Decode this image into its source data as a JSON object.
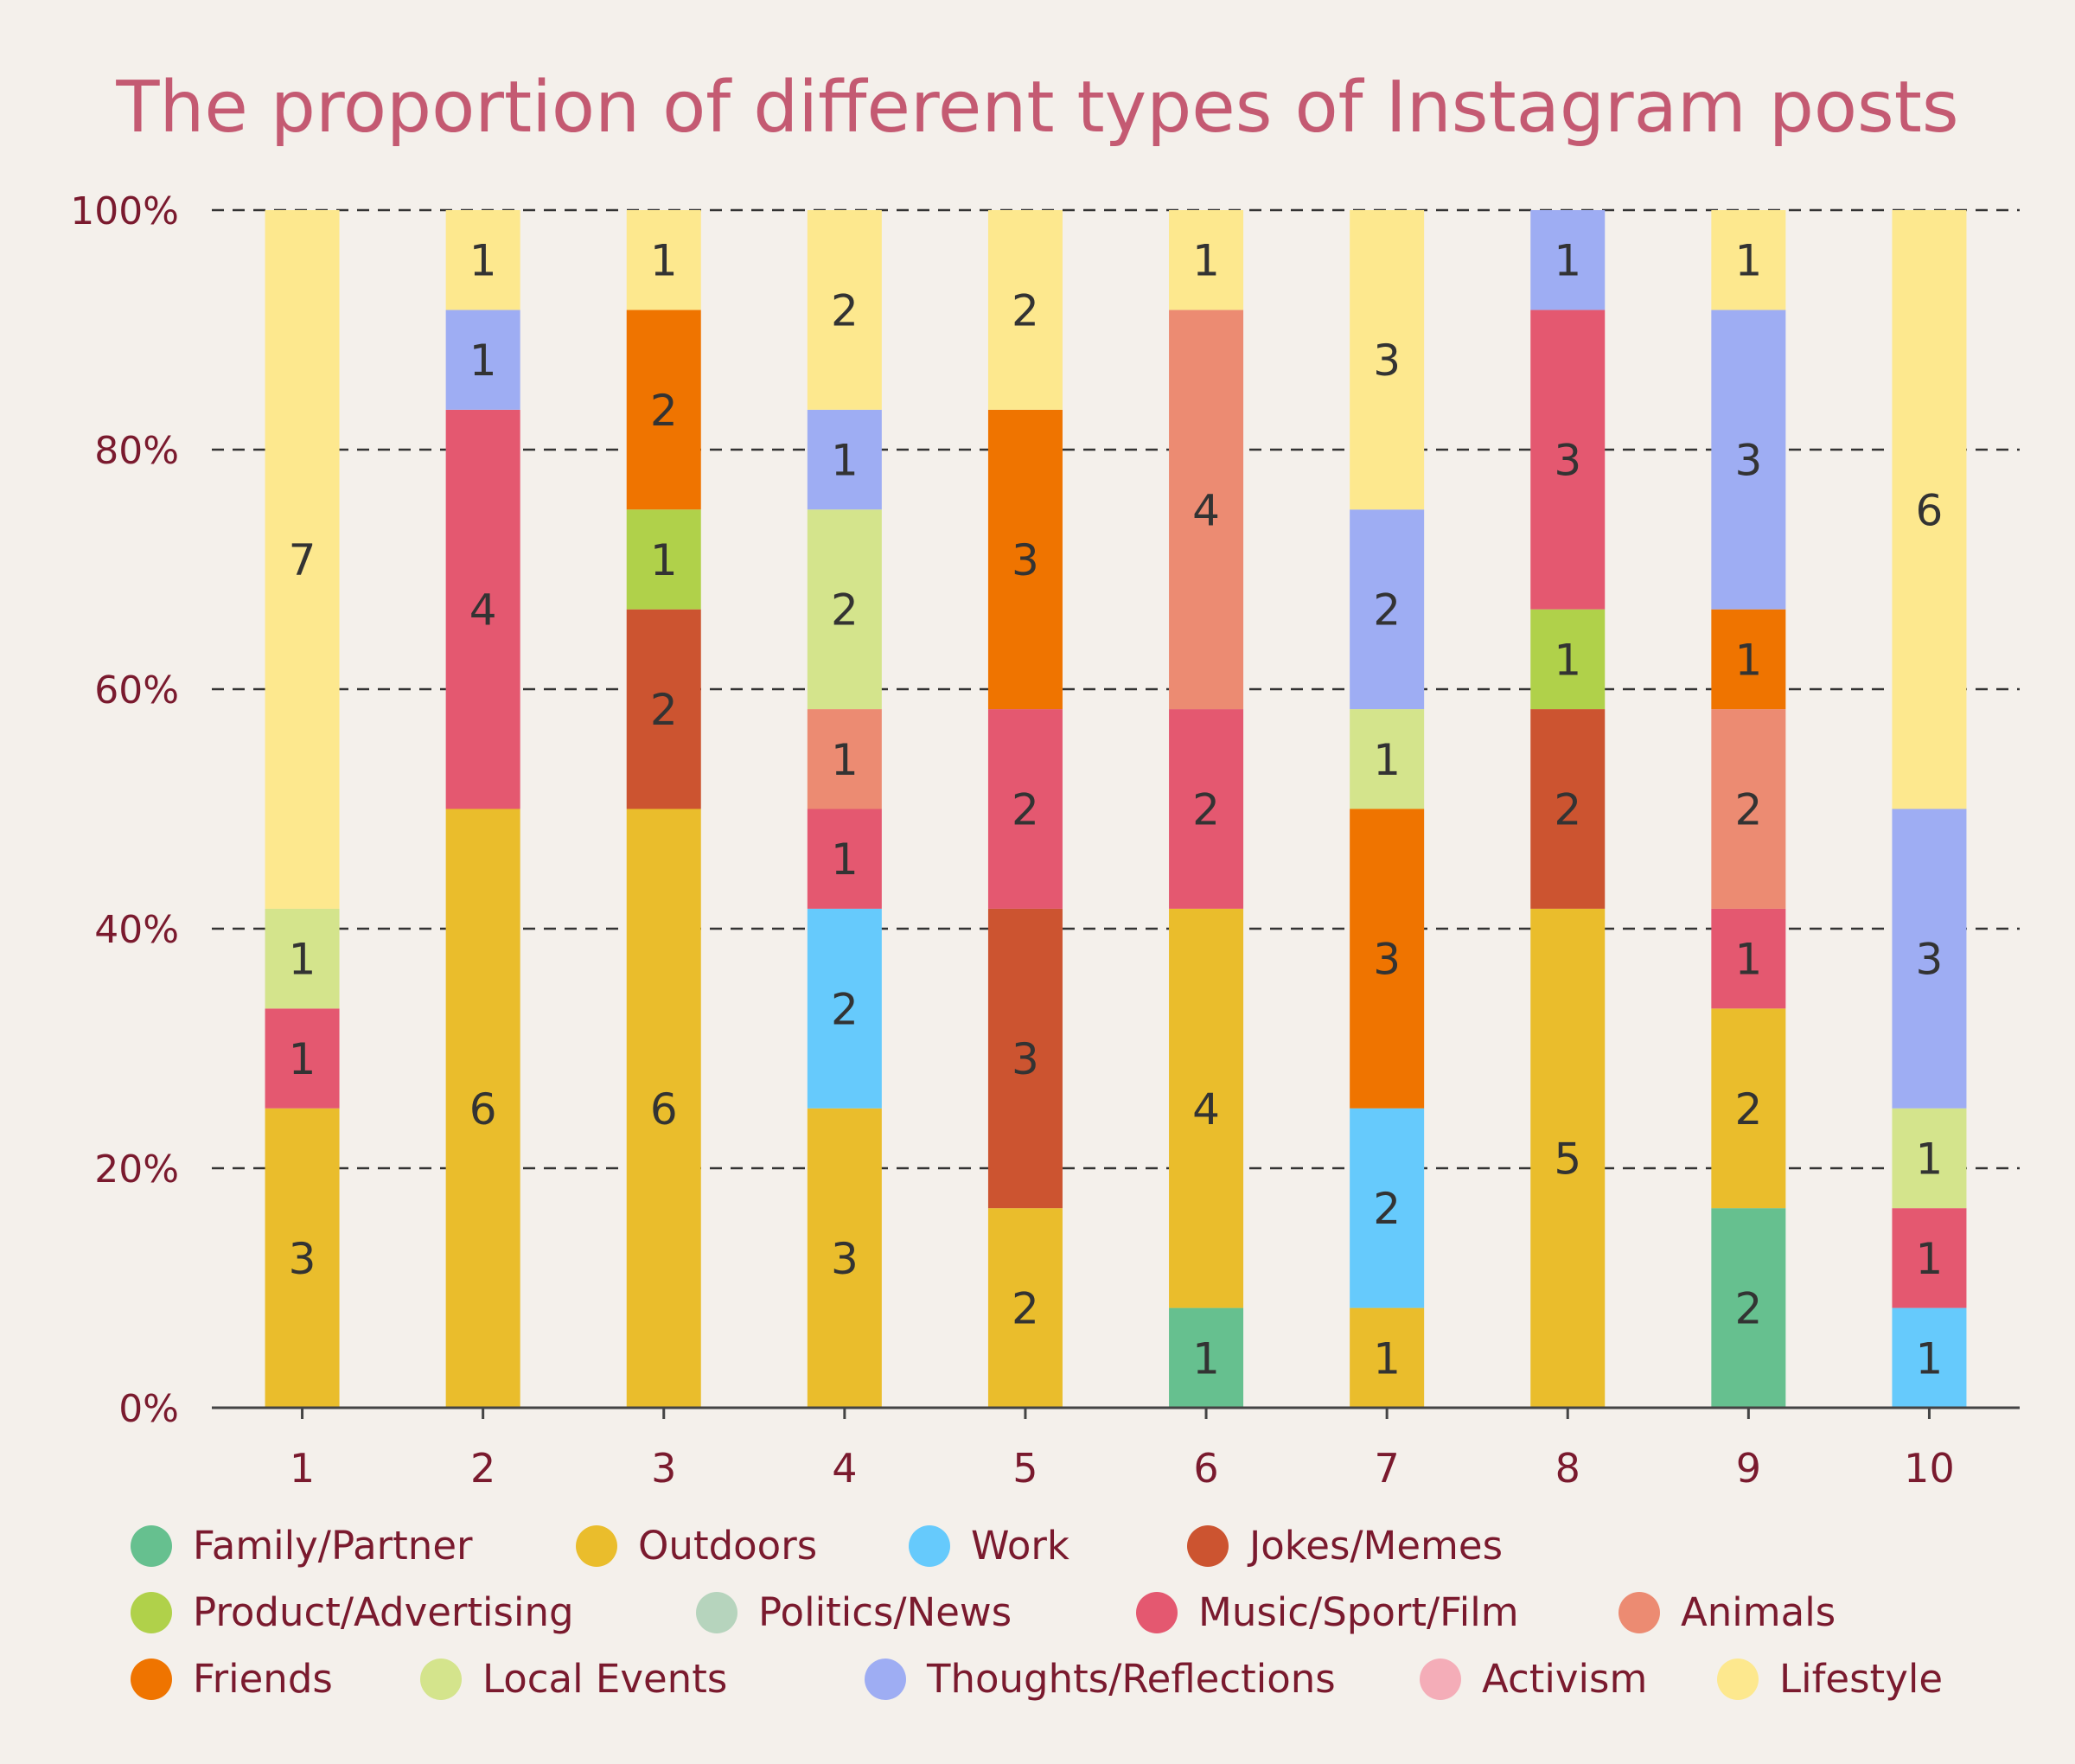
{
  "chart_data": {
    "type": "bar",
    "stacked": true,
    "normalized": true,
    "title": "The proportion of different types of Instagram posts",
    "categories": [
      "1",
      "2",
      "3",
      "4",
      "5",
      "6",
      "7",
      "8",
      "9",
      "10"
    ],
    "y_ticks": [
      "0%",
      "20%",
      "40%",
      "60%",
      "80%",
      "100%"
    ],
    "ylim": [
      0,
      100
    ],
    "grid": "horizontal dashed",
    "legend_position": "bottom",
    "series": [
      {
        "name": "Family/Partner",
        "color": "#66c08f",
        "values": [
          0,
          0,
          0,
          0,
          0,
          1,
          0,
          0,
          2,
          0
        ]
      },
      {
        "name": "Outdoors",
        "color": "#eabd2c",
        "values": [
          3,
          6,
          6,
          3,
          2,
          4,
          1,
          5,
          2,
          0
        ]
      },
      {
        "name": "Work",
        "color": "#66cafc",
        "values": [
          0,
          0,
          0,
          2,
          0,
          0,
          2,
          0,
          0,
          1
        ]
      },
      {
        "name": "Jokes/Memes",
        "color": "#cc5430",
        "values": [
          0,
          0,
          2,
          0,
          3,
          0,
          0,
          2,
          0,
          0
        ]
      },
      {
        "name": "Product/Advertising",
        "color": "#b0d14a",
        "values": [
          0,
          0,
          1,
          0,
          0,
          0,
          0,
          1,
          0,
          0
        ]
      },
      {
        "name": "Politics/News",
        "color": "#b6d4bd",
        "values": [
          0,
          0,
          0,
          0,
          0,
          0,
          0,
          0,
          0,
          0
        ]
      },
      {
        "name": "Music/Sport/Film",
        "color": "#e45870",
        "values": [
          1,
          4,
          0,
          1,
          2,
          2,
          0,
          3,
          1,
          1
        ]
      },
      {
        "name": "Animals",
        "color": "#ec8b72",
        "values": [
          0,
          0,
          0,
          1,
          0,
          4,
          0,
          0,
          2,
          0
        ]
      },
      {
        "name": "Friends",
        "color": "#ef7400",
        "values": [
          0,
          0,
          2,
          0,
          3,
          0,
          3,
          0,
          1,
          0
        ]
      },
      {
        "name": "Local Events",
        "color": "#d4e48c",
        "values": [
          1,
          0,
          0,
          2,
          0,
          0,
          1,
          0,
          0,
          1
        ]
      },
      {
        "name": "Thoughts/Reflections",
        "color": "#9eadf3",
        "values": [
          0,
          1,
          0,
          1,
          0,
          0,
          2,
          1,
          3,
          3
        ]
      },
      {
        "name": "Activism",
        "color": "#f4adb8",
        "values": [
          0,
          0,
          0,
          0,
          0,
          0,
          0,
          0,
          0,
          0
        ]
      },
      {
        "name": "Lifestyle",
        "color": "#fde88e",
        "values": [
          7,
          1,
          1,
          2,
          2,
          1,
          3,
          0,
          1,
          6
        ]
      }
    ]
  }
}
